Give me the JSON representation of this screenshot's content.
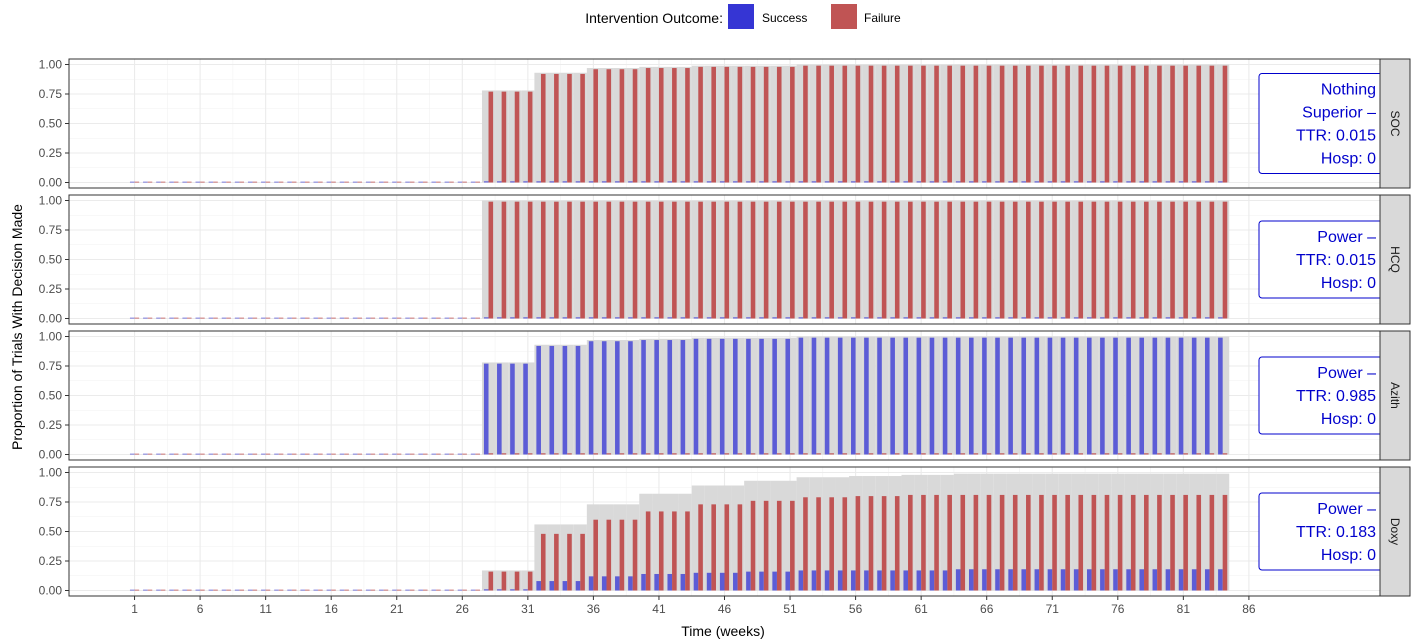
{
  "legend": {
    "title": "Intervention Outcome:",
    "items": [
      {
        "label": "Success",
        "color": "#3535d4"
      },
      {
        "label": "Failure",
        "color": "#c05454"
      }
    ]
  },
  "colors": {
    "total_bar": "#d9d9d9",
    "success": "#5c5cd6",
    "failure": "#c05454",
    "annotation": "#0000cc",
    "strip": "#d9d9d9"
  },
  "chart_data": {
    "type": "bar",
    "xlabel": "Time (weeks)",
    "ylabel": "Proportion of Trials With Decision Made",
    "x_ticks": [
      1,
      6,
      11,
      16,
      21,
      26,
      31,
      36,
      41,
      46,
      51,
      56,
      61,
      66,
      71,
      76,
      81,
      86
    ],
    "y_ticks": [
      "0.00",
      "0.25",
      "0.50",
      "0.75",
      "1.00"
    ],
    "xlim": [
      -4,
      96
    ],
    "ylim": [
      0,
      1
    ],
    "x": [
      1,
      2,
      3,
      4,
      5,
      6,
      7,
      8,
      9,
      10,
      11,
      12,
      13,
      14,
      15,
      16,
      17,
      18,
      19,
      20,
      21,
      22,
      23,
      24,
      25,
      26,
      27,
      28,
      29,
      30,
      31,
      32,
      33,
      34,
      35,
      36,
      37,
      38,
      39,
      40,
      41,
      42,
      43,
      44,
      45,
      46,
      47,
      48,
      49,
      50,
      51,
      52,
      53,
      54,
      55,
      56,
      57,
      58,
      59,
      60,
      61,
      62,
      63,
      64,
      65,
      66,
      67,
      68,
      69,
      70,
      71,
      72,
      73,
      74,
      75,
      76,
      77,
      78,
      79,
      80,
      81,
      82,
      83,
      84
    ],
    "panels": [
      {
        "strip": "SOC",
        "annotation": [
          "Nothing",
          "Superior –",
          "TTR: 0.015",
          "Hosp: 0"
        ],
        "total": [
          0,
          0,
          0,
          0,
          0,
          0,
          0,
          0,
          0,
          0,
          0,
          0,
          0,
          0,
          0,
          0,
          0,
          0,
          0,
          0,
          0,
          0,
          0,
          0,
          0,
          0,
          0,
          0.78,
          0.78,
          0.78,
          0.78,
          0.93,
          0.93,
          0.93,
          0.93,
          0.97,
          0.97,
          0.97,
          0.97,
          0.98,
          0.98,
          0.98,
          0.98,
          0.99,
          0.99,
          0.99,
          0.99,
          0.99,
          0.99,
          0.99,
          0.99,
          1,
          1,
          1,
          1,
          1,
          1,
          1,
          1,
          1,
          1,
          1,
          1,
          1,
          1,
          1,
          1,
          1,
          1,
          1,
          1,
          1,
          1,
          1,
          1,
          1,
          1,
          1,
          1,
          1,
          1,
          1,
          1,
          1
        ],
        "success": [
          0,
          0,
          0,
          0,
          0,
          0,
          0,
          0,
          0,
          0,
          0,
          0,
          0,
          0,
          0,
          0,
          0,
          0,
          0,
          0,
          0,
          0,
          0,
          0,
          0,
          0,
          0,
          0.01,
          0.01,
          0.01,
          0.01,
          0.01,
          0.01,
          0.01,
          0.01,
          0.01,
          0.01,
          0.01,
          0.01,
          0.01,
          0.01,
          0.01,
          0.01,
          0.01,
          0.01,
          0.01,
          0.01,
          0.01,
          0.01,
          0.01,
          0.01,
          0.01,
          0.01,
          0.01,
          0.01,
          0.01,
          0.01,
          0.01,
          0.01,
          0.01,
          0.01,
          0.01,
          0.01,
          0.01,
          0.01,
          0.01,
          0.01,
          0.01,
          0.01,
          0.01,
          0.01,
          0.01,
          0.01,
          0.01,
          0.01,
          0.01,
          0.01,
          0.01,
          0.01,
          0.01,
          0.01,
          0.01,
          0.01,
          0.01
        ],
        "failure": [
          0,
          0,
          0,
          0,
          0,
          0,
          0,
          0,
          0,
          0,
          0,
          0,
          0,
          0,
          0,
          0,
          0,
          0,
          0,
          0,
          0,
          0,
          0,
          0,
          0,
          0,
          0,
          0.77,
          0.77,
          0.77,
          0.77,
          0.92,
          0.92,
          0.92,
          0.92,
          0.96,
          0.96,
          0.96,
          0.96,
          0.97,
          0.97,
          0.97,
          0.97,
          0.98,
          0.98,
          0.98,
          0.98,
          0.98,
          0.98,
          0.98,
          0.98,
          0.99,
          0.99,
          0.99,
          0.99,
          0.99,
          0.99,
          0.99,
          0.99,
          0.99,
          0.99,
          0.99,
          0.99,
          0.99,
          0.99,
          0.99,
          0.99,
          0.99,
          0.99,
          0.99,
          0.99,
          0.99,
          0.99,
          0.99,
          0.99,
          0.99,
          0.99,
          0.99,
          0.99,
          0.99,
          0.99,
          0.99,
          0.99,
          0.99
        ]
      },
      {
        "strip": "HCQ",
        "annotation": [
          "Power –",
          "TTR: 0.015",
          "Hosp: 0"
        ],
        "total": [
          0,
          0,
          0,
          0,
          0,
          0,
          0,
          0,
          0,
          0,
          0,
          0,
          0,
          0,
          0,
          0,
          0,
          0,
          0,
          0,
          0,
          0,
          0,
          0,
          0,
          0,
          0,
          1,
          1,
          1,
          1,
          1,
          1,
          1,
          1,
          1,
          1,
          1,
          1,
          1,
          1,
          1,
          1,
          1,
          1,
          1,
          1,
          1,
          1,
          1,
          1,
          1,
          1,
          1,
          1,
          1,
          1,
          1,
          1,
          1,
          1,
          1,
          1,
          1,
          1,
          1,
          1,
          1,
          1,
          1,
          1,
          1,
          1,
          1,
          1,
          1,
          1,
          1,
          1,
          1,
          1,
          1,
          1,
          1
        ],
        "success": [
          0,
          0,
          0,
          0,
          0,
          0,
          0,
          0,
          0,
          0,
          0,
          0,
          0,
          0,
          0,
          0,
          0,
          0,
          0,
          0,
          0,
          0,
          0,
          0,
          0,
          0,
          0,
          0.01,
          0.01,
          0.01,
          0.01,
          0.01,
          0.01,
          0.01,
          0.01,
          0.01,
          0.01,
          0.01,
          0.01,
          0.01,
          0.01,
          0.01,
          0.01,
          0.01,
          0.01,
          0.01,
          0.01,
          0.01,
          0.01,
          0.01,
          0.01,
          0.01,
          0.01,
          0.01,
          0.01,
          0.01,
          0.01,
          0.01,
          0.01,
          0.01,
          0.01,
          0.01,
          0.01,
          0.01,
          0.01,
          0.01,
          0.01,
          0.01,
          0.01,
          0.01,
          0.01,
          0.01,
          0.01,
          0.01,
          0.01,
          0.01,
          0.01,
          0.01,
          0.01,
          0.01,
          0.01,
          0.01,
          0.01,
          0.01
        ],
        "failure": [
          0,
          0,
          0,
          0,
          0,
          0,
          0,
          0,
          0,
          0,
          0,
          0,
          0,
          0,
          0,
          0,
          0,
          0,
          0,
          0,
          0,
          0,
          0,
          0,
          0,
          0,
          0,
          0.99,
          0.99,
          0.99,
          0.99,
          0.99,
          0.99,
          0.99,
          0.99,
          0.99,
          0.99,
          0.99,
          0.99,
          0.99,
          0.99,
          0.99,
          0.99,
          0.99,
          0.99,
          0.99,
          0.99,
          0.99,
          0.99,
          0.99,
          0.99,
          0.99,
          0.99,
          0.99,
          0.99,
          0.99,
          0.99,
          0.99,
          0.99,
          0.99,
          0.99,
          0.99,
          0.99,
          0.99,
          0.99,
          0.99,
          0.99,
          0.99,
          0.99,
          0.99,
          0.99,
          0.99,
          0.99,
          0.99,
          0.99,
          0.99,
          0.99,
          0.99,
          0.99,
          0.99,
          0.99,
          0.99,
          0.99,
          0.99
        ]
      },
      {
        "strip": "Azith",
        "annotation": [
          "Power –",
          "TTR: 0.985",
          "Hosp: 0"
        ],
        "total": [
          0,
          0,
          0,
          0,
          0,
          0,
          0,
          0,
          0,
          0,
          0,
          0,
          0,
          0,
          0,
          0,
          0,
          0,
          0,
          0,
          0,
          0,
          0,
          0,
          0,
          0,
          0,
          0.78,
          0.78,
          0.78,
          0.78,
          0.93,
          0.93,
          0.93,
          0.93,
          0.97,
          0.97,
          0.97,
          0.97,
          0.98,
          0.98,
          0.98,
          0.98,
          0.99,
          0.99,
          0.99,
          0.99,
          0.99,
          0.99,
          0.99,
          0.99,
          1,
          1,
          1,
          1,
          1,
          1,
          1,
          1,
          1,
          1,
          1,
          1,
          1,
          1,
          1,
          1,
          1,
          1,
          1,
          1,
          1,
          1,
          1,
          1,
          1,
          1,
          1,
          1,
          1,
          1,
          1,
          1,
          1
        ],
        "success": [
          0,
          0,
          0,
          0,
          0,
          0,
          0,
          0,
          0,
          0,
          0,
          0,
          0,
          0,
          0,
          0,
          0,
          0,
          0,
          0,
          0,
          0,
          0,
          0,
          0,
          0,
          0,
          0.77,
          0.77,
          0.77,
          0.77,
          0.92,
          0.92,
          0.92,
          0.92,
          0.96,
          0.96,
          0.96,
          0.96,
          0.97,
          0.97,
          0.97,
          0.97,
          0.98,
          0.98,
          0.98,
          0.98,
          0.98,
          0.98,
          0.98,
          0.98,
          0.99,
          0.99,
          0.99,
          0.99,
          0.99,
          0.99,
          0.99,
          0.99,
          0.99,
          0.99,
          0.99,
          0.99,
          0.99,
          0.99,
          0.99,
          0.99,
          0.99,
          0.99,
          0.99,
          0.99,
          0.99,
          0.99,
          0.99,
          0.99,
          0.99,
          0.99,
          0.99,
          0.99,
          0.99,
          0.99,
          0.99,
          0.99,
          0.99
        ],
        "failure": [
          0,
          0,
          0,
          0,
          0,
          0,
          0,
          0,
          0,
          0,
          0,
          0,
          0,
          0,
          0,
          0,
          0,
          0,
          0,
          0,
          0,
          0,
          0,
          0,
          0,
          0,
          0,
          0.01,
          0.01,
          0.01,
          0.01,
          0.01,
          0.01,
          0.01,
          0.01,
          0.01,
          0.01,
          0.01,
          0.01,
          0.01,
          0.01,
          0.01,
          0.01,
          0.01,
          0.01,
          0.01,
          0.01,
          0.01,
          0.01,
          0.01,
          0.01,
          0.01,
          0.01,
          0.01,
          0.01,
          0.01,
          0.01,
          0.01,
          0.01,
          0.01,
          0.01,
          0.01,
          0.01,
          0.01,
          0.01,
          0.01,
          0.01,
          0.01,
          0.01,
          0.01,
          0.01,
          0.01,
          0.01,
          0.01,
          0.01,
          0.01,
          0.01,
          0.01,
          0.01,
          0.01,
          0.01,
          0.01,
          0.01,
          0.01
        ]
      },
      {
        "strip": "Doxy",
        "annotation": [
          "Power –",
          "TTR: 0.183",
          "Hosp: 0"
        ],
        "total": [
          0,
          0,
          0,
          0,
          0,
          0,
          0,
          0,
          0,
          0,
          0,
          0,
          0,
          0,
          0,
          0,
          0,
          0,
          0,
          0,
          0,
          0,
          0,
          0,
          0,
          0,
          0,
          0.17,
          0.17,
          0.17,
          0.17,
          0.56,
          0.56,
          0.56,
          0.56,
          0.73,
          0.73,
          0.73,
          0.73,
          0.82,
          0.82,
          0.82,
          0.82,
          0.89,
          0.89,
          0.89,
          0.89,
          0.93,
          0.93,
          0.93,
          0.93,
          0.96,
          0.96,
          0.96,
          0.96,
          0.97,
          0.97,
          0.97,
          0.97,
          0.98,
          0.98,
          0.98,
          0.98,
          0.99,
          0.99,
          0.99,
          0.99,
          0.99,
          0.99,
          0.99,
          0.99,
          0.99,
          0.99,
          0.99,
          0.99,
          0.99,
          0.99,
          0.99,
          0.99,
          0.99,
          0.99,
          0.99,
          0.99,
          0.99
        ],
        "success": [
          0,
          0,
          0,
          0,
          0,
          0,
          0,
          0,
          0,
          0,
          0,
          0,
          0,
          0,
          0,
          0,
          0,
          0,
          0,
          0,
          0,
          0,
          0,
          0,
          0,
          0,
          0,
          0.01,
          0.01,
          0.01,
          0.01,
          0.08,
          0.08,
          0.08,
          0.08,
          0.12,
          0.12,
          0.12,
          0.12,
          0.14,
          0.14,
          0.14,
          0.14,
          0.15,
          0.15,
          0.15,
          0.15,
          0.16,
          0.16,
          0.16,
          0.16,
          0.17,
          0.17,
          0.17,
          0.17,
          0.17,
          0.17,
          0.17,
          0.17,
          0.17,
          0.17,
          0.17,
          0.17,
          0.18,
          0.18,
          0.18,
          0.18,
          0.18,
          0.18,
          0.18,
          0.18,
          0.18,
          0.18,
          0.18,
          0.18,
          0.18,
          0.18,
          0.18,
          0.18,
          0.18,
          0.18,
          0.18,
          0.18,
          0.18
        ],
        "failure": [
          0,
          0,
          0,
          0,
          0,
          0,
          0,
          0,
          0,
          0,
          0,
          0,
          0,
          0,
          0,
          0,
          0,
          0,
          0,
          0,
          0,
          0,
          0,
          0,
          0,
          0,
          0,
          0.16,
          0.16,
          0.16,
          0.16,
          0.48,
          0.48,
          0.48,
          0.48,
          0.6,
          0.6,
          0.6,
          0.6,
          0.67,
          0.67,
          0.67,
          0.67,
          0.73,
          0.73,
          0.73,
          0.73,
          0.76,
          0.76,
          0.76,
          0.76,
          0.79,
          0.79,
          0.79,
          0.79,
          0.8,
          0.8,
          0.8,
          0.8,
          0.81,
          0.81,
          0.81,
          0.81,
          0.81,
          0.81,
          0.81,
          0.81,
          0.81,
          0.81,
          0.81,
          0.81,
          0.81,
          0.81,
          0.81,
          0.81,
          0.81,
          0.81,
          0.81,
          0.81,
          0.81,
          0.81,
          0.81,
          0.81,
          0.81
        ]
      }
    ]
  }
}
